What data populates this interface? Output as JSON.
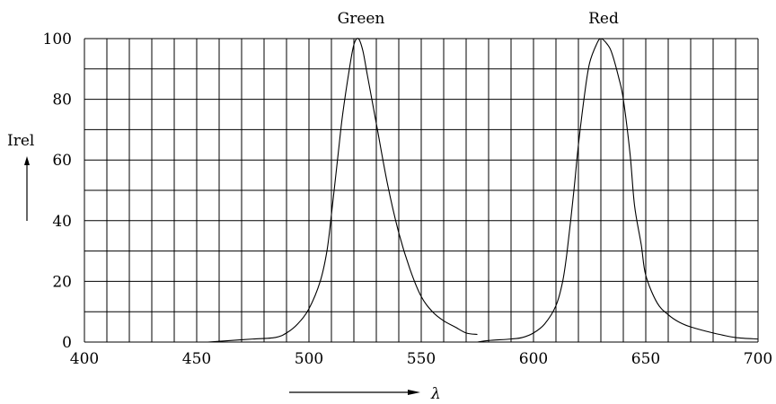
{
  "chart_data": {
    "type": "line",
    "title": "",
    "xlabel": "λ",
    "ylabel": "Irel",
    "xlim": [
      400,
      700
    ],
    "ylim": [
      0,
      100
    ],
    "grid": true,
    "x_tick_values": [
      400,
      450,
      500,
      550,
      600,
      650,
      700
    ],
    "y_tick_values": [
      0,
      20,
      40,
      60,
      80,
      100
    ],
    "x_tick_labels": [
      "400",
      "450",
      "500",
      "550",
      "600",
      "650",
      "700"
    ],
    "y_tick_labels": [
      "0",
      "20",
      "40",
      "60",
      "80",
      "100"
    ],
    "series": [
      {
        "name": "Green",
        "x": [
          455,
          465,
          475,
          485,
          490,
          495,
          500,
          505,
          508,
          510,
          513,
          515,
          518,
          520,
          522,
          524,
          526,
          530,
          535,
          540,
          545,
          550,
          555,
          560,
          565,
          570,
          575
        ],
        "y": [
          0,
          0.5,
          1,
          1.5,
          3,
          6,
          11,
          20,
          30,
          42,
          62,
          75,
          90,
          98,
          100,
          96,
          88,
          72,
          52,
          36,
          24,
          15,
          10,
          7,
          5,
          3,
          2.5
        ]
      },
      {
        "name": "Red",
        "x": [
          575,
          580,
          590,
          595,
          600,
          605,
          610,
          613,
          615,
          618,
          620,
          623,
          625,
          628,
          630,
          633,
          635,
          638,
          640,
          643,
          645,
          648,
          650,
          655,
          660,
          665,
          670,
          680,
          690,
          700
        ],
        "y": [
          0,
          0.5,
          1,
          1.5,
          3,
          6,
          12,
          20,
          30,
          50,
          65,
          83,
          92,
          98,
          100,
          98,
          95,
          87,
          80,
          62,
          45,
          32,
          22,
          13,
          9,
          6.5,
          5,
          3,
          1.5,
          1
        ]
      }
    ]
  }
}
